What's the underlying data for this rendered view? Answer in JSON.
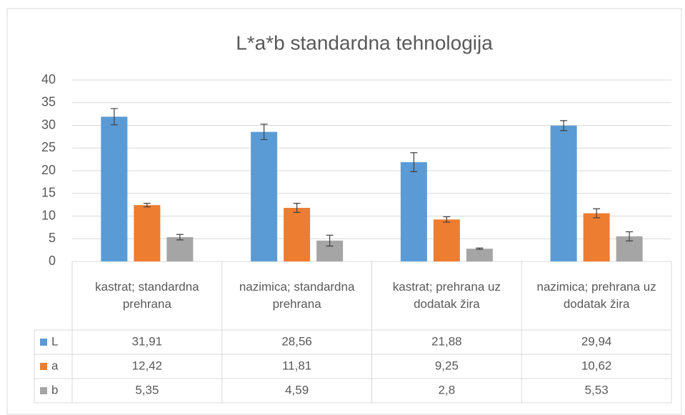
{
  "chart_data": {
    "type": "bar",
    "title": "L*a*b standardna tehnologija",
    "categories": [
      "kastrat; standardna prehrana",
      "nazimica; standardna prehrana",
      "kastrat; prehrana uz dodatak žira",
      "nazimica; prehrana uz dodatak žira"
    ],
    "series": [
      {
        "name": "L",
        "color": "#5b9bd5",
        "values": [
          31.91,
          28.56,
          21.88,
          29.94
        ],
        "value_labels": [
          "31,91",
          "28,56",
          "21,88",
          "29,94"
        ],
        "errors": [
          1.8,
          1.7,
          2.1,
          1.1
        ]
      },
      {
        "name": "a",
        "color": "#ed7d31",
        "values": [
          12.42,
          11.81,
          9.25,
          10.62
        ],
        "value_labels": [
          "12,42",
          "11,81",
          "9,25",
          "10,62"
        ],
        "errors": [
          0.4,
          1.0,
          0.6,
          1.0
        ]
      },
      {
        "name": "b",
        "color": "#a5a5a5",
        "values": [
          5.35,
          4.59,
          2.8,
          5.53
        ],
        "value_labels": [
          "5,35",
          "4,59",
          "2,8",
          "5,53"
        ],
        "errors": [
          0.6,
          1.2,
          0.15,
          1.0
        ]
      }
    ],
    "ylim": [
      0,
      40
    ],
    "yticks": [
      0,
      5,
      10,
      15,
      20,
      25,
      30,
      35,
      40
    ],
    "grid": true
  }
}
